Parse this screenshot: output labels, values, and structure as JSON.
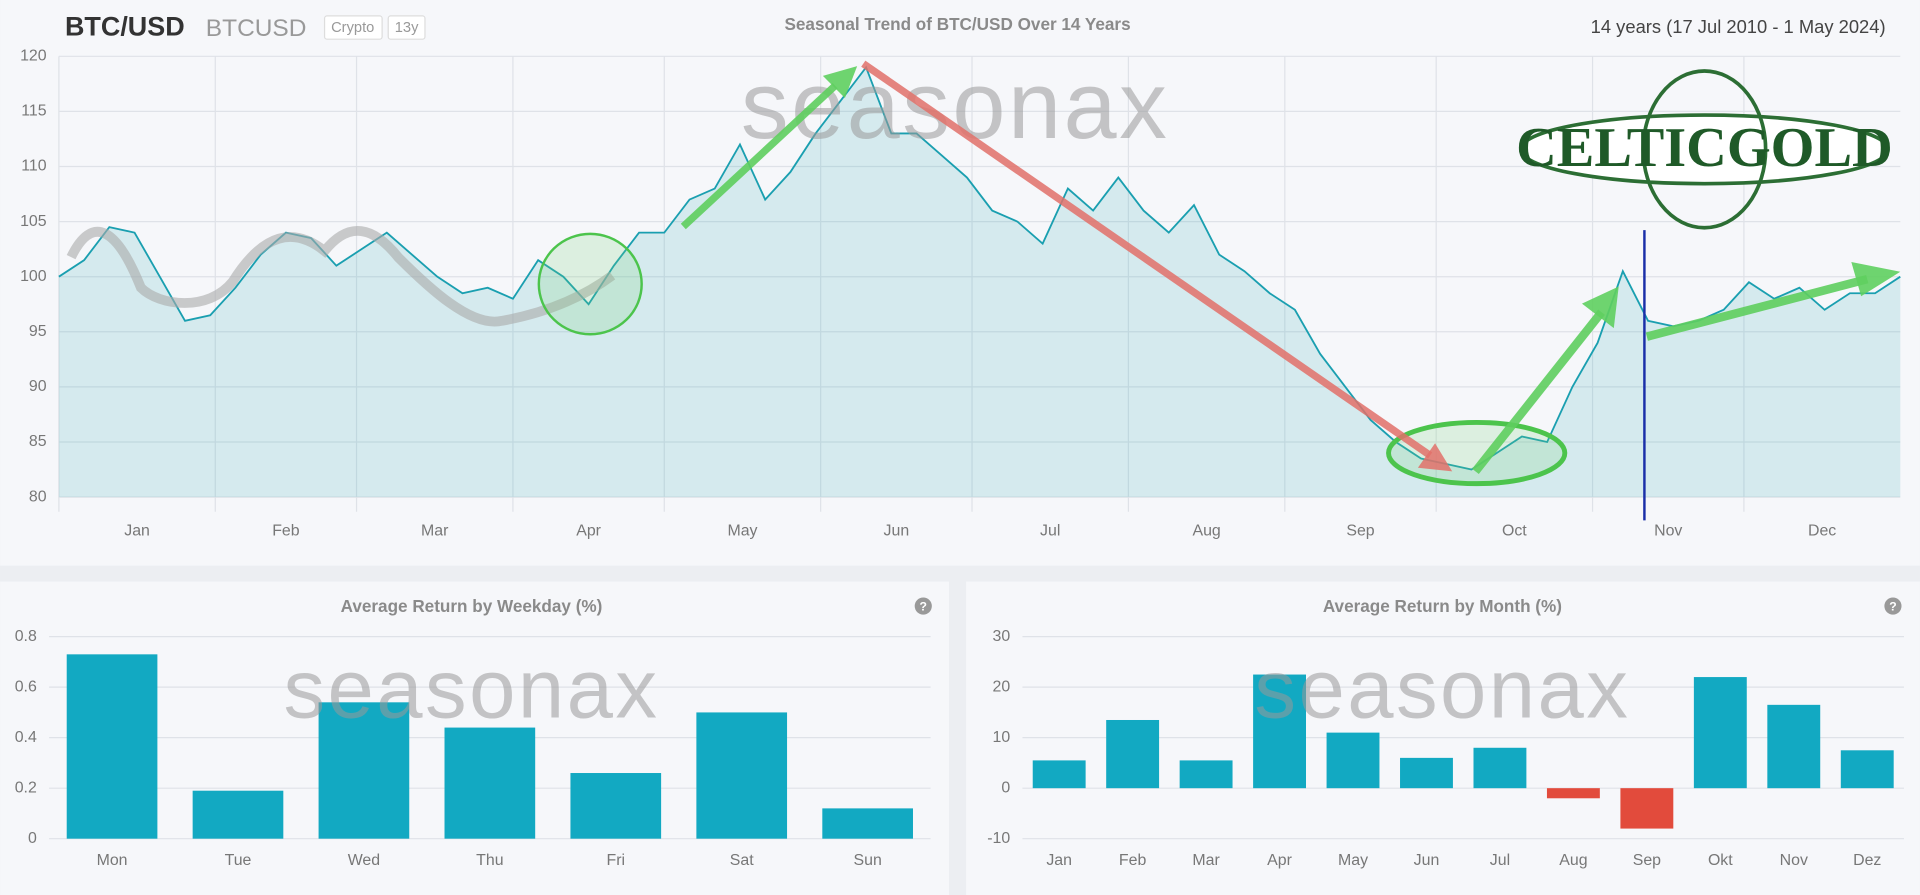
{
  "header": {
    "symbol": "BTC/USD",
    "ticker": "BTCUSD",
    "badges": [
      "Crypto",
      "13y"
    ],
    "range": "14 years (17 Jul 2010 - 1 May 2024)"
  },
  "watermark": "seasonax",
  "logo": "CELTICGOLD",
  "help": "?",
  "chart_data": [
    {
      "type": "line",
      "title": "Seasonal Trend of BTC/USD Over 14 Years",
      "color": "#1a9fb0",
      "x": [
        1,
        6,
        11,
        16,
        21,
        26,
        31,
        36,
        41,
        46,
        51,
        56,
        61,
        66,
        71,
        76,
        81,
        86,
        91,
        96,
        101,
        106,
        111,
        116,
        121,
        126,
        131,
        136,
        141,
        146,
        151,
        156,
        161,
        166,
        171,
        176,
        181,
        186,
        191,
        196,
        201,
        206,
        211,
        216,
        221,
        226,
        231,
        236,
        241,
        246,
        251,
        256,
        261,
        266,
        271,
        276,
        281,
        286,
        291,
        296,
        301,
        306,
        311,
        316,
        321,
        326,
        331,
        336,
        341,
        346,
        351,
        356,
        361,
        366
      ],
      "values": [
        100,
        101.5,
        104.5,
        104,
        100,
        96,
        96.5,
        99,
        102,
        104,
        103.5,
        101,
        102.5,
        104,
        102,
        100,
        98.5,
        99,
        98,
        101.5,
        100,
        97.5,
        101,
        104,
        104,
        107,
        108,
        112,
        107,
        109.5,
        113,
        116,
        119,
        113,
        113,
        111,
        109,
        106,
        105,
        103,
        108,
        106,
        109,
        106,
        104,
        106.5,
        102,
        100.5,
        98.5,
        97,
        93,
        90,
        87,
        85,
        83.5,
        83,
        82.5,
        84,
        85.5,
        85,
        90,
        94,
        100.5,
        96,
        95.5,
        96,
        97,
        99.5,
        98,
        99,
        97,
        98.5,
        98.5,
        100
      ],
      "xlim": [
        1,
        366
      ],
      "xticks": [
        {
          "value": 1,
          "label": "Jan"
        },
        {
          "value": 32,
          "label": "Feb"
        },
        {
          "value": 60,
          "label": "Mar"
        },
        {
          "value": 91,
          "label": "Apr"
        },
        {
          "value": 121,
          "label": "May"
        },
        {
          "value": 152,
          "label": "Jun"
        },
        {
          "value": 182,
          "label": "Jul"
        },
        {
          "value": 213,
          "label": "Aug"
        },
        {
          "value": 244,
          "label": "Sep"
        },
        {
          "value": 274,
          "label": "Oct"
        },
        {
          "value": 305,
          "label": "Nov"
        },
        {
          "value": 335,
          "label": "Dec"
        }
      ],
      "ylim": [
        80,
        120
      ],
      "yticks": [
        80,
        85,
        90,
        95,
        100,
        105,
        110,
        115,
        120
      ],
      "grid": true
    },
    {
      "type": "bar",
      "title": "Average Return by Weekday (%)",
      "color": "#12a9c2",
      "negative_color": "#e24b3c",
      "categories": [
        "Mon",
        "Tue",
        "Wed",
        "Thu",
        "Fri",
        "Sat",
        "Sun"
      ],
      "values": [
        0.73,
        0.19,
        0.54,
        0.44,
        0.26,
        0.5,
        0.12
      ],
      "ylim": [
        0,
        0.8
      ],
      "yticks": [
        0,
        0.2,
        0.4,
        0.6,
        0.8
      ],
      "grid": true
    },
    {
      "type": "bar",
      "title": "Average Return by Month (%)",
      "color": "#12a9c2",
      "negative_color": "#e24b3c",
      "categories": [
        "Jan",
        "Feb",
        "Mar",
        "Apr",
        "May",
        "Jun",
        "Jul",
        "Aug",
        "Sep",
        "Okt",
        "Nov",
        "Dez"
      ],
      "values": [
        5.5,
        13.5,
        5.5,
        22.5,
        11,
        6,
        8,
        -2,
        -8,
        22,
        16.5,
        7.5
      ],
      "ylim": [
        -10,
        30
      ],
      "yticks": [
        -10,
        0,
        10,
        20,
        30
      ],
      "grid": true
    }
  ]
}
